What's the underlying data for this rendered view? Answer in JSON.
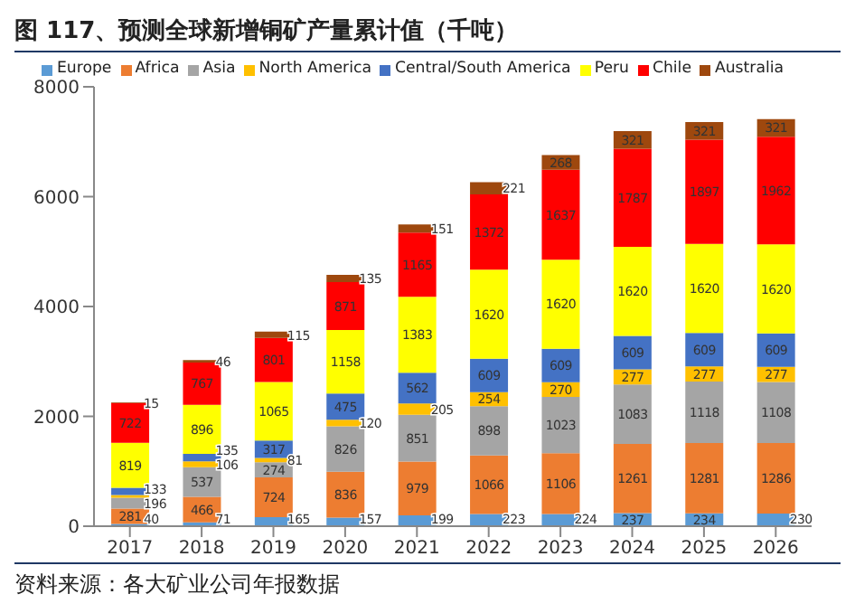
{
  "chart_data": {
    "type": "bar",
    "stacked": true,
    "title": "图 117、预测全球新增铜矿产量累计值（千吨）",
    "annotations": [
      "资料来源：各大矿业公司年报数据"
    ],
    "categories": [
      "2017",
      "2018",
      "2019",
      "2020",
      "2021",
      "2022",
      "2023",
      "2024",
      "2025",
      "2026"
    ],
    "series": [
      {
        "name": "Europe",
        "color": "#5b9bd5",
        "values": [
          40,
          71,
          165,
          157,
          199,
          223,
          224,
          237,
          234,
          230
        ],
        "value_labels": [
          "40",
          "71",
          "165",
          "157",
          "199",
          "223",
          "224",
          "237",
          "234",
          "230"
        ]
      },
      {
        "name": "Africa",
        "color": "#ed7d31",
        "values": [
          281,
          466,
          724,
          836,
          979,
          1066,
          1106,
          1261,
          1281,
          1286
        ],
        "value_labels": [
          "281",
          "466",
          "724",
          "836",
          "979",
          "1066",
          "1106",
          "1261",
          "1281",
          "1286"
        ]
      },
      {
        "name": "Asia",
        "color": "#a5a5a5",
        "values": [
          196,
          537,
          274,
          826,
          851,
          898,
          1023,
          1083,
          1118,
          1108
        ],
        "value_labels": [
          "196",
          "537",
          "274",
          "826",
          "851",
          "898",
          "1023",
          "1083",
          "1118",
          "1108"
        ]
      },
      {
        "name": "North America",
        "color": "#ffc000",
        "values": [
          50,
          106,
          81,
          120,
          205,
          254,
          270,
          277,
          277,
          277
        ],
        "value_labels": [
          null,
          "106",
          "81",
          "120",
          "205",
          "254",
          "270",
          "277",
          "277",
          "277"
        ]
      },
      {
        "name": "Central/South America",
        "color": "#4472c4",
        "values": [
          133,
          135,
          317,
          475,
          562,
          609,
          609,
          609,
          609,
          609
        ],
        "value_labels": [
          "133",
          "135",
          "317",
          "475",
          "562",
          "609",
          "609",
          "609",
          "609",
          "609"
        ]
      },
      {
        "name": "Peru",
        "color": "#ffff00",
        "values": [
          819,
          896,
          1065,
          1158,
          1383,
          1620,
          1620,
          1620,
          1620,
          1620
        ],
        "value_labels": [
          "819",
          "896",
          "1065",
          "1158",
          "1383",
          "1620",
          "1620",
          "1620",
          "1620",
          "1620"
        ]
      },
      {
        "name": "Chile",
        "color": "#ff0000",
        "values": [
          722,
          767,
          801,
          871,
          1165,
          1372,
          1637,
          1787,
          1897,
          1962
        ],
        "value_labels": [
          "722",
          "767",
          "801",
          "871",
          "1165",
          "1372",
          "1637",
          "1787",
          "1897",
          "1962"
        ]
      },
      {
        "name": "Australia",
        "color": "#9e480e",
        "values": [
          15,
          46,
          115,
          135,
          151,
          221,
          268,
          321,
          321,
          321
        ],
        "value_labels": [
          "15",
          "46",
          "115",
          "135",
          "151",
          "221",
          "268",
          "321",
          "321",
          "321"
        ]
      }
    ],
    "ylim": [
      0,
      8000
    ],
    "yticks": [
      0,
      2000,
      4000,
      6000,
      8000
    ],
    "grid": false,
    "legend": "top"
  }
}
